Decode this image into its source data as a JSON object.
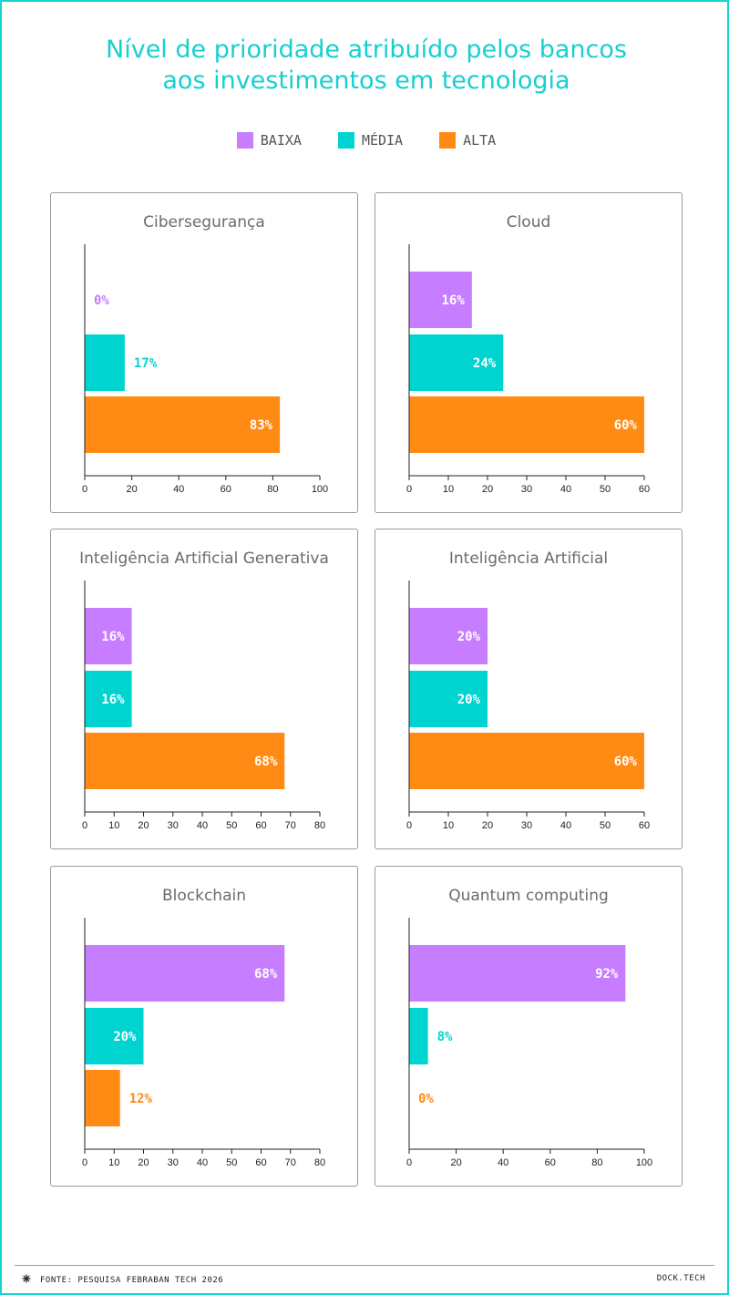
{
  "title_line1": "Nível de prioridade atribuído pelos bancos",
  "title_line2": "aos investimentos em tecnologia",
  "legend": [
    {
      "label": "BAIXA",
      "color": "#c77dff"
    },
    {
      "label": "MÉDIA",
      "color": "#00d4d0"
    },
    {
      "label": "ALTA",
      "color": "#ff8a14"
    }
  ],
  "footer": {
    "icon": "asterisk-icon",
    "source": "FONTE: PESQUISA FEBRABAN TECH 2026",
    "brand": "DOCK.TECH"
  },
  "chart_data": [
    {
      "type": "bar",
      "orientation": "horizontal",
      "title": "Cibersegurança",
      "categories": [
        "BAIXA",
        "MÉDIA",
        "ALTA"
      ],
      "values": [
        0,
        17,
        83
      ],
      "value_labels": [
        "0%",
        "17%",
        "83%"
      ],
      "xlim": [
        0,
        100
      ],
      "ticks": [
        0,
        20,
        40,
        60,
        80,
        100
      ]
    },
    {
      "type": "bar",
      "orientation": "horizontal",
      "title": "Cloud",
      "categories": [
        "BAIXA",
        "MÉDIA",
        "ALTA"
      ],
      "values": [
        16,
        24,
        60
      ],
      "value_labels": [
        "16%",
        "24%",
        "60%"
      ],
      "xlim": [
        0,
        60
      ],
      "ticks": [
        0,
        10,
        20,
        30,
        40,
        50,
        60
      ]
    },
    {
      "type": "bar",
      "orientation": "horizontal",
      "title": "Inteligência Artificial Generativa",
      "categories": [
        "BAIXA",
        "MÉDIA",
        "ALTA"
      ],
      "values": [
        16,
        16,
        68
      ],
      "value_labels": [
        "16%",
        "16%",
        "68%"
      ],
      "xlim": [
        0,
        80
      ],
      "ticks": [
        0,
        10,
        20,
        30,
        40,
        50,
        60,
        70,
        80
      ]
    },
    {
      "type": "bar",
      "orientation": "horizontal",
      "title": "Inteligência Artificial",
      "categories": [
        "BAIXA",
        "MÉDIA",
        "ALTA"
      ],
      "values": [
        20,
        20,
        60
      ],
      "value_labels": [
        "20%",
        "20%",
        "60%"
      ],
      "xlim": [
        0,
        60
      ],
      "ticks": [
        0,
        10,
        20,
        30,
        40,
        50,
        60
      ]
    },
    {
      "type": "bar",
      "orientation": "horizontal",
      "title": "Blockchain",
      "categories": [
        "BAIXA",
        "MÉDIA",
        "ALTA"
      ],
      "values": [
        68,
        20,
        12
      ],
      "value_labels": [
        "68%",
        "20%",
        "12%"
      ],
      "xlim": [
        0,
        80
      ],
      "ticks": [
        0,
        10,
        20,
        30,
        40,
        50,
        60,
        70,
        80
      ]
    },
    {
      "type": "bar",
      "orientation": "horizontal",
      "title": "Quantum computing",
      "categories": [
        "BAIXA",
        "MÉDIA",
        "ALTA"
      ],
      "values": [
        92,
        8,
        0
      ],
      "value_labels": [
        "92%",
        "8%",
        "0%"
      ],
      "xlim": [
        0,
        100
      ],
      "ticks": [
        0,
        20,
        40,
        60,
        80,
        100
      ]
    }
  ]
}
